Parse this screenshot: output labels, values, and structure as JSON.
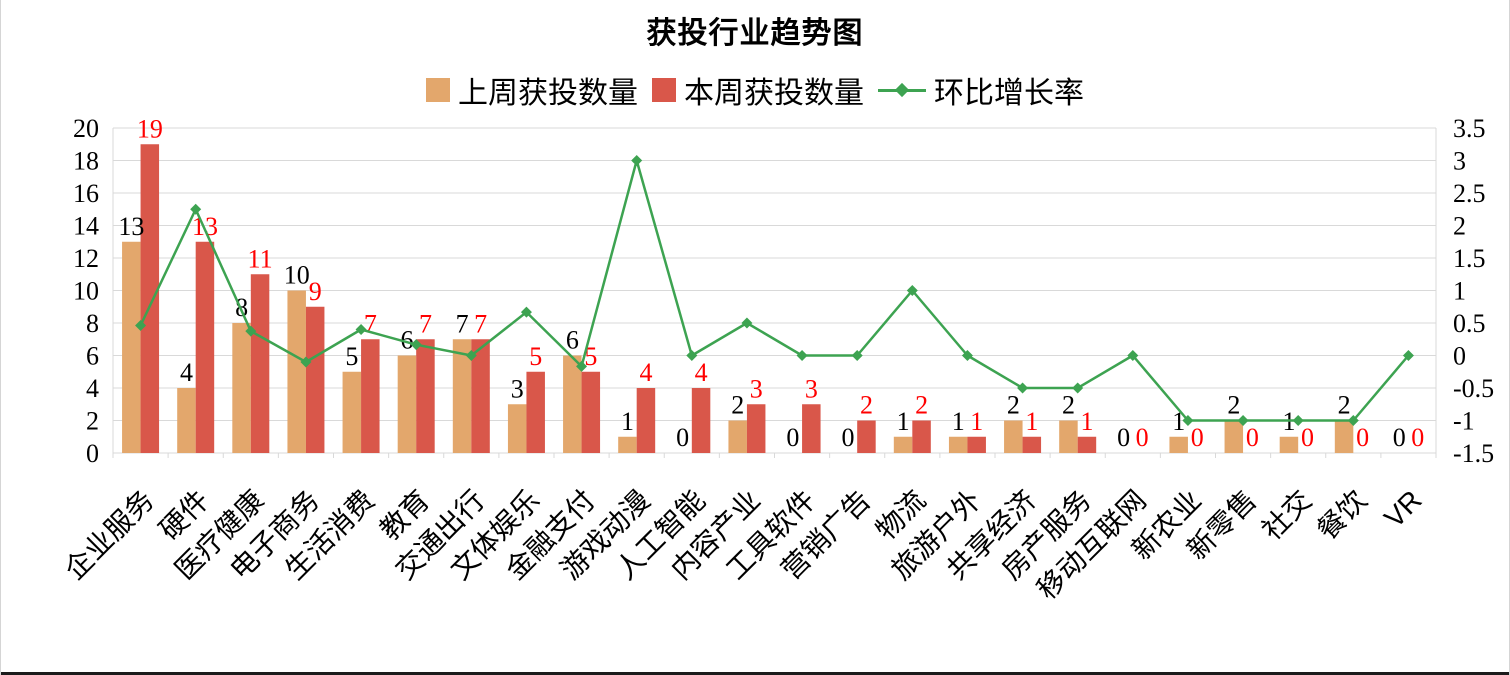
{
  "title": "获投行业趋势图",
  "legend": [
    {
      "label": "上周获投数量",
      "swatch": "square",
      "color": "#E3A76C"
    },
    {
      "label": "本周获投数量",
      "swatch": "square",
      "color": "#D9574A"
    },
    {
      "label": "环比增长率",
      "swatch": "line-diamond",
      "color": "#3DA351"
    }
  ],
  "colors": {
    "last_week": "#E3A76C",
    "this_week": "#D9574A",
    "growth": "#3DA351",
    "label_last": "#000000",
    "label_this": "#FF0000",
    "grid": "#D9D9D9",
    "axis_text": "#000000"
  },
  "chart_data": {
    "type": "bar+line combo",
    "title": "获投行业趋势图",
    "categories": [
      "企业服务",
      "硬件",
      "医疗健康",
      "电子商务",
      "生活消费",
      "教育",
      "交通出行",
      "文体娱乐",
      "金融支付",
      "游戏动漫",
      "人工智能",
      "内容产业",
      "工具软件",
      "营销广告",
      "物流",
      "旅游户外",
      "共享经济",
      "房产服务",
      "移动互联网",
      "新农业",
      "新零售",
      "社交",
      "餐饮",
      "VR"
    ],
    "series": [
      {
        "name": "上周获投数量",
        "type": "bar",
        "axis": "left",
        "color": "#E3A76C",
        "values": [
          13,
          4,
          8,
          10,
          5,
          6,
          7,
          3,
          6,
          1,
          0,
          2,
          0,
          0,
          1,
          1,
          2,
          2,
          0,
          1,
          2,
          1,
          2,
          0
        ]
      },
      {
        "name": "本周获投数量",
        "type": "bar",
        "axis": "left",
        "color": "#D9574A",
        "values": [
          19,
          13,
          11,
          9,
          7,
          7,
          7,
          5,
          5,
          4,
          4,
          3,
          3,
          2,
          2,
          1,
          1,
          1,
          0,
          0,
          0,
          0,
          0,
          0
        ]
      },
      {
        "name": "环比增长率",
        "type": "line",
        "axis": "right",
        "color": "#3DA351",
        "values": [
          0.4615,
          2.25,
          0.375,
          -0.1,
          0.4,
          0.1667,
          0,
          0.6667,
          -0.1667,
          3,
          0,
          0.5,
          0,
          0,
          1,
          0,
          -0.5,
          -0.5,
          0,
          -1,
          -1,
          -1,
          -1,
          0
        ]
      }
    ],
    "left_axis": {
      "min": 0,
      "max": 20,
      "step": 2,
      "ticks": [
        "0",
        "2",
        "4",
        "6",
        "8",
        "10",
        "12",
        "14",
        "16",
        "18",
        "20"
      ]
    },
    "right_axis": {
      "min": -1.5,
      "max": 3.5,
      "step": 0.5,
      "ticks": [
        "-1.5",
        "-1",
        "-0.5",
        "0",
        "0.5",
        "1",
        "1.5",
        "2",
        "2.5",
        "3",
        "3.5"
      ]
    },
    "grid": true,
    "legend_position": "top",
    "value_labels": {
      "last_week_color": "#000000",
      "this_week_color": "#FF0000"
    }
  }
}
